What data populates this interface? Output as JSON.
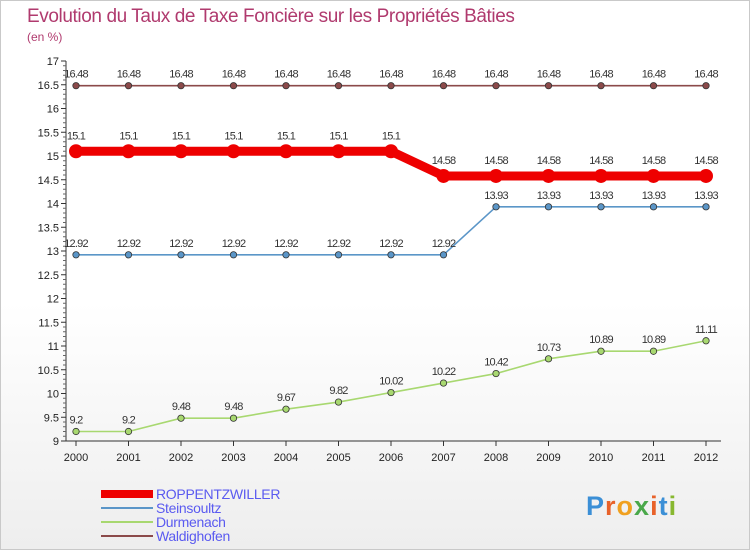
{
  "title": "Evolution du Taux de Taxe Foncière sur les Propriétés Bâties",
  "subtitle": "(en %)",
  "brand": {
    "text": "Proxiti",
    "letter_colors": [
      "#3b8fd6",
      "#e8622a",
      "#f0a020",
      "#4aa84a",
      "#e8622a",
      "#3b8fd6",
      "#88b830"
    ]
  },
  "chart_data": {
    "type": "line",
    "x": [
      "2000",
      "2001",
      "2002",
      "2003",
      "2004",
      "2005",
      "2006",
      "2007",
      "2008",
      "2009",
      "2010",
      "2011",
      "2012"
    ],
    "ylim": [
      9,
      17
    ],
    "y_ticks": [
      "9",
      "9.5",
      "10",
      "10.5",
      "11",
      "11.5",
      "12",
      "12.5",
      "13",
      "13.5",
      "14",
      "14.5",
      "15",
      "15.5",
      "16",
      "16.5",
      "17"
    ],
    "grid": false,
    "legend_position": "bottom-left",
    "series": [
      {
        "name": "ROPPENTZWILLER",
        "color": "#ee0000",
        "emphasis": true,
        "values": [
          15.1,
          15.1,
          15.1,
          15.1,
          15.1,
          15.1,
          15.1,
          14.58,
          14.58,
          14.58,
          14.58,
          14.58,
          14.58
        ],
        "labels": [
          "15.1",
          "15.1",
          "15.1",
          "15.1",
          "15.1",
          "15.1",
          "15.1",
          "14.58",
          "14.58",
          "14.58",
          "14.58",
          "14.58",
          "14.58"
        ]
      },
      {
        "name": "Steinsoultz",
        "color": "#5b96c8",
        "emphasis": false,
        "values": [
          12.92,
          12.92,
          12.92,
          12.92,
          12.92,
          12.92,
          12.92,
          12.92,
          13.93,
          13.93,
          13.93,
          13.93,
          13.93
        ],
        "labels": [
          "12.92",
          "12.92",
          "12.92",
          "12.92",
          "12.92",
          "12.92",
          "12.92",
          "12.92",
          "13.93",
          "13.93",
          "13.93",
          "13.93",
          "13.93"
        ]
      },
      {
        "name": "Durmenach",
        "color": "#a8d870",
        "emphasis": false,
        "values": [
          9.2,
          9.2,
          9.48,
          9.48,
          9.67,
          9.82,
          10.02,
          10.22,
          10.42,
          10.73,
          10.89,
          10.89,
          11.11
        ],
        "labels": [
          "9.2",
          "9.2",
          "9.48",
          "9.48",
          "9.67",
          "9.82",
          "10.02",
          "10.22",
          "10.42",
          "10.73",
          "10.89",
          "10.89",
          "11.11"
        ]
      },
      {
        "name": "Waldighofen",
        "color": "#8b4a4a",
        "emphasis": false,
        "values": [
          16.48,
          16.48,
          16.48,
          16.48,
          16.48,
          16.48,
          16.48,
          16.48,
          16.48,
          16.48,
          16.48,
          16.48,
          16.48
        ],
        "labels": [
          "16.48",
          "16.48",
          "16.48",
          "16.48",
          "16.48",
          "16.48",
          "16.48",
          "16.48",
          "16.48",
          "16.48",
          "16.48",
          "16.48",
          "16.48"
        ]
      }
    ]
  }
}
